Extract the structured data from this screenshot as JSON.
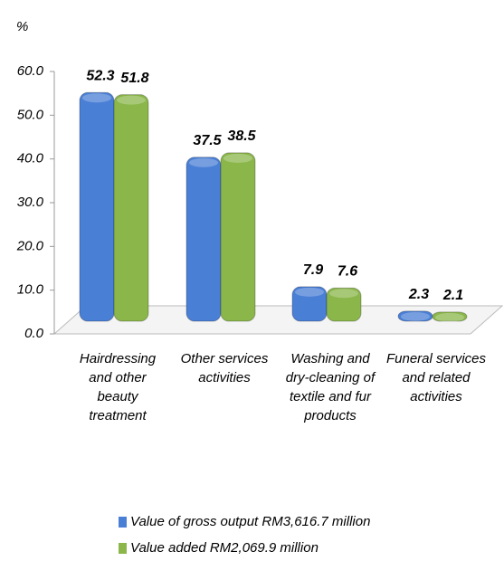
{
  "chart_data": {
    "type": "bar",
    "y_label": "%",
    "categories": [
      "Hairdressing and other beauty treatment",
      "Other services activities",
      "Washing and dry-cleaning of textile and fur products",
      "Funeral services and related activities"
    ],
    "series": [
      {
        "name": "Value of gross output RM3,616.7 million",
        "color": "#4a7fd6",
        "values": [
          52.3,
          37.5,
          7.9,
          2.3
        ]
      },
      {
        "name": "Value added RM2,069.9 million",
        "color": "#8ab64a",
        "values": [
          51.8,
          38.5,
          7.6,
          2.1
        ]
      }
    ],
    "ylim": [
      0,
      60
    ],
    "yticks": [
      {
        "value": 0,
        "label": "0.0"
      },
      {
        "value": 10,
        "label": "10.0"
      },
      {
        "value": 20,
        "label": "20.0"
      },
      {
        "value": 30,
        "label": "30.0"
      },
      {
        "value": 40,
        "label": "40.0"
      },
      {
        "value": 50,
        "label": "50.0"
      },
      {
        "value": 60,
        "label": "60.0"
      }
    ],
    "grid": false,
    "legend": "bottom"
  }
}
